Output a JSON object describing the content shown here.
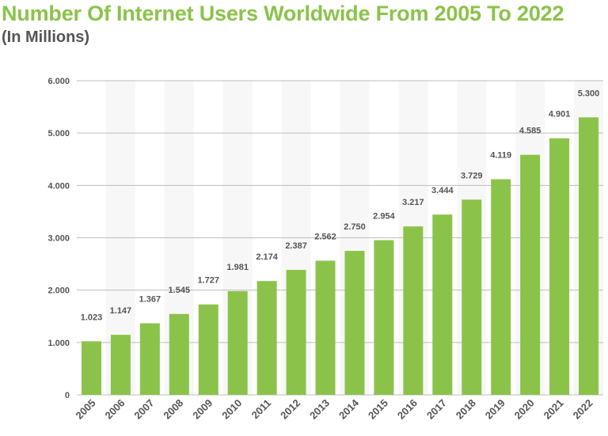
{
  "header": {
    "title": "Number Of Internet Users Worldwide From 2005 To 2022",
    "subtitle": "(In Millions)"
  },
  "colors": {
    "title": "#8bc34a",
    "bar": "#8bc34a",
    "text": "#555555",
    "grid": "#bdbdbd",
    "band": "#f7f7f7"
  },
  "chart_data": {
    "type": "bar",
    "title": "Number Of Internet Users Worldwide From 2005 To 2022",
    "subtitle": "(In Millions)",
    "xlabel": "",
    "ylabel": "",
    "ylim": [
      0,
      6000
    ],
    "yticks": [
      0,
      1000,
      2000,
      3000,
      4000,
      5000,
      6000
    ],
    "ytick_labels": [
      "0",
      "1.000",
      "2.000",
      "3.000",
      "4.000",
      "5.000",
      "6.000"
    ],
    "grid": true,
    "legend": "none",
    "categories": [
      "2005",
      "2006",
      "2007",
      "2008",
      "2009",
      "2010",
      "2011",
      "2012",
      "2013",
      "2014",
      "2015",
      "2016",
      "2017",
      "2018",
      "2019",
      "2020",
      "2021",
      "2022"
    ],
    "values": [
      1023,
      1147,
      1367,
      1545,
      1727,
      1981,
      2174,
      2387,
      2562,
      2750,
      2954,
      3217,
      3444,
      3729,
      4119,
      4585,
      4901,
      5300
    ],
    "value_labels": [
      "1.023",
      "1.147",
      "1.367",
      "1.545",
      "1.727",
      "1.981",
      "2.174",
      "2.387",
      "2.562",
      "2.750",
      "2.954",
      "3.217",
      "3.444",
      "3.729",
      "4.119",
      "4.585",
      "4.901",
      "5.300"
    ]
  }
}
